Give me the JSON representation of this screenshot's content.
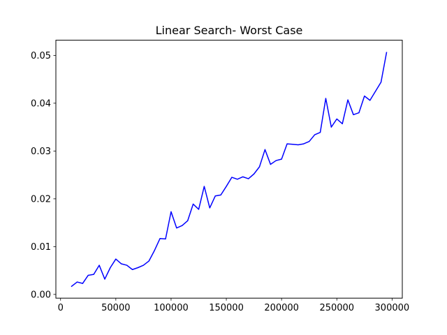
{
  "chart_data": {
    "type": "line",
    "title": "Linear Search- Worst Case",
    "xlabel": "",
    "ylabel": "",
    "xlim": [
      -4250,
      309250
    ],
    "ylim": [
      -0.00078,
      0.05318
    ],
    "xticks": [
      0,
      50000,
      100000,
      150000,
      200000,
      250000,
      300000
    ],
    "xtick_labels": [
      "0",
      "50000",
      "100000",
      "150000",
      "200000",
      "250000",
      "300000"
    ],
    "yticks": [
      0.0,
      0.01,
      0.02,
      0.03,
      0.04,
      0.05
    ],
    "ytick_labels": [
      "0.00",
      "0.01",
      "0.02",
      "0.03",
      "0.04",
      "0.05"
    ],
    "grid": false,
    "legend": false,
    "series": [
      {
        "color": "#0000ff",
        "x": [
          10000,
          15000,
          20000,
          25000,
          30000,
          35000,
          40000,
          45000,
          50000,
          55000,
          60000,
          65000,
          70000,
          75000,
          80000,
          85000,
          90000,
          95000,
          100000,
          105000,
          110000,
          115000,
          120000,
          125000,
          130000,
          135000,
          140000,
          145000,
          150000,
          155000,
          160000,
          165000,
          170000,
          175000,
          180000,
          185000,
          190000,
          195000,
          200000,
          205000,
          210000,
          215000,
          220000,
          225000,
          230000,
          235000,
          240000,
          245000,
          250000,
          255000,
          260000,
          265000,
          270000,
          275000,
          280000,
          285000,
          290000,
          295000
        ],
        "y": [
          0.0017,
          0.0026,
          0.0023,
          0.004,
          0.0042,
          0.0061,
          0.0032,
          0.0056,
          0.0074,
          0.0064,
          0.0061,
          0.0052,
          0.0056,
          0.0061,
          0.007,
          0.0092,
          0.0117,
          0.0116,
          0.0173,
          0.0139,
          0.0144,
          0.0154,
          0.0189,
          0.0178,
          0.0226,
          0.0181,
          0.0206,
          0.0208,
          0.0226,
          0.0245,
          0.0241,
          0.0246,
          0.0242,
          0.0252,
          0.0267,
          0.0303,
          0.0272,
          0.028,
          0.0283,
          0.0315,
          0.0314,
          0.0313,
          0.0315,
          0.032,
          0.0334,
          0.0339,
          0.041,
          0.035,
          0.0367,
          0.0357,
          0.0407,
          0.0376,
          0.038,
          0.0415,
          0.0406,
          0.0425,
          0.0444,
          0.0506
        ]
      }
    ]
  }
}
